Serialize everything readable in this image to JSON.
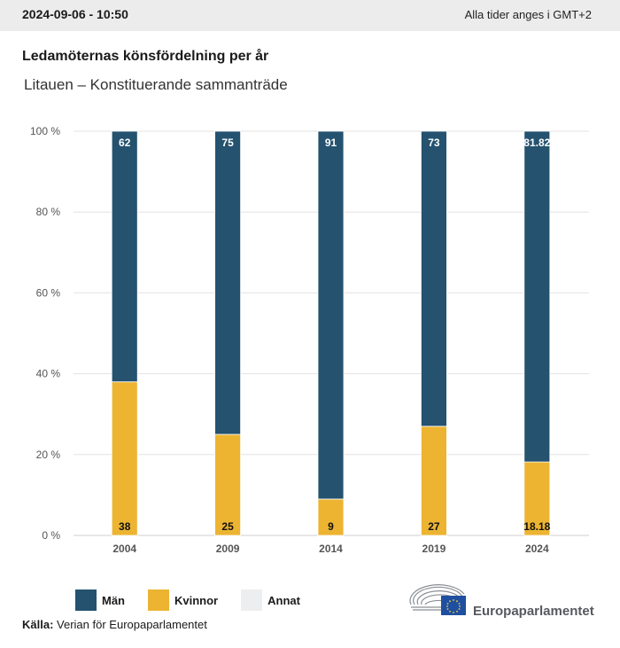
{
  "header": {
    "timestamp": "2024-09-06 - 10:50",
    "timezone_note": "Alla tider anges i GMT+2"
  },
  "colors": {
    "men": "#24526f",
    "women": "#ecb431",
    "other": "#edeef0",
    "grid": "#e3e3e3",
    "axis_text": "#555555"
  },
  "chart_data": {
    "type": "bar",
    "stacked": true,
    "title": "Ledamöternas könsfördelning per år",
    "subtitle": "Litauen – Konstituerande sammanträde",
    "xlabel": "",
    "ylabel": "",
    "categories": [
      "2004",
      "2009",
      "2014",
      "2019",
      "2024"
    ],
    "series": [
      {
        "name": "Kvinnor",
        "key": "women",
        "values": [
          38,
          25,
          9,
          27,
          18.18
        ],
        "labels": [
          "38",
          "25",
          "9",
          "27",
          "18.18"
        ]
      },
      {
        "name": "Män",
        "key": "men",
        "values": [
          62,
          75,
          91,
          73,
          81.82
        ],
        "labels": [
          "62",
          "75",
          "91",
          "73",
          "81.82"
        ]
      },
      {
        "name": "Annat",
        "key": "other",
        "values": [
          0,
          0,
          0,
          0,
          0
        ],
        "labels": [
          "",
          "",
          "",
          "",
          ""
        ]
      }
    ],
    "ylim": [
      0,
      100
    ],
    "yticks": [
      0,
      20,
      40,
      60,
      80,
      100
    ],
    "ytick_labels": [
      "0 %",
      "20 %",
      "40 %",
      "60 %",
      "80 %",
      "100 %"
    ],
    "grid": true,
    "legend_position": "bottom-left"
  },
  "legend": {
    "items": [
      {
        "label": "Män",
        "key": "men"
      },
      {
        "label": "Kvinnor",
        "key": "women"
      },
      {
        "label": "Annat",
        "key": "other"
      }
    ]
  },
  "source": {
    "label": "Källa:",
    "text": "Verian för Europaparlamentet"
  },
  "logo": {
    "name": "Europaparlamentet"
  }
}
